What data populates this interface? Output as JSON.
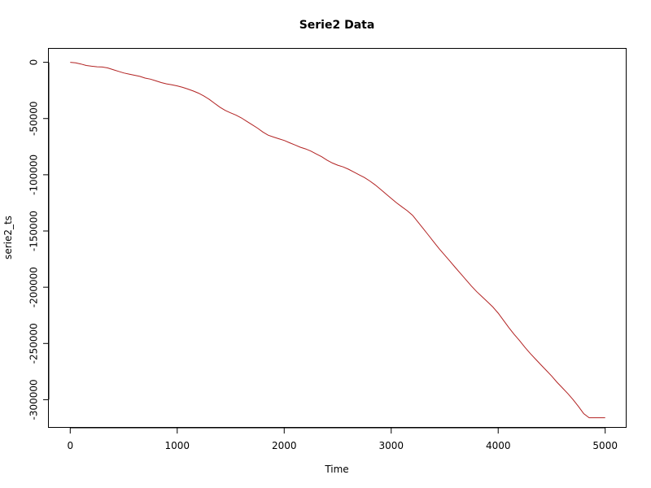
{
  "chart_data": {
    "type": "line",
    "title": "Serie2 Data",
    "xlabel": "Time",
    "ylabel": "serie2_ts",
    "xlim": [
      -200,
      5200
    ],
    "ylim": [
      -325000,
      12000
    ],
    "x_ticks": [
      0,
      1000,
      2000,
      3000,
      4000,
      5000
    ],
    "x_tick_labels": [
      "0",
      "1000",
      "2000",
      "3000",
      "4000",
      "5000"
    ],
    "y_ticks": [
      0,
      -50000,
      -100000,
      -150000,
      -200000,
      -250000,
      -300000
    ],
    "y_tick_labels": [
      "0",
      "-50000",
      "-100000",
      "-150000",
      "-200000",
      "-250000",
      "-300000"
    ],
    "grid": false,
    "line_color": "#b22222",
    "series": [
      {
        "x": [
          0,
          50,
          100,
          150,
          200,
          250,
          300,
          350,
          400,
          450,
          500,
          550,
          600,
          650,
          700,
          750,
          800,
          850,
          900,
          950,
          1000,
          1050,
          1100,
          1150,
          1200,
          1250,
          1300,
          1350,
          1400,
          1450,
          1500,
          1550,
          1600,
          1650,
          1700,
          1750,
          1800,
          1850,
          1900,
          1950,
          2000,
          2050,
          2100,
          2150,
          2200,
          2250,
          2300,
          2350,
          2400,
          2450,
          2500,
          2550,
          2600,
          2650,
          2700,
          2750,
          2800,
          2850,
          2900,
          2950,
          3000,
          3050,
          3100,
          3150,
          3200,
          3250,
          3300,
          3350,
          3400,
          3450,
          3500,
          3550,
          3600,
          3650,
          3700,
          3750,
          3800,
          3850,
          3900,
          3950,
          4000,
          4050,
          4100,
          4150,
          4200,
          4250,
          4300,
          4350,
          4400,
          4450,
          4500,
          4550,
          4600,
          4650,
          4700,
          4750,
          4800,
          4850,
          4900,
          4950,
          5000
        ],
        "values": [
          0,
          -500,
          -1500,
          -2800,
          -3500,
          -4000,
          -4200,
          -5000,
          -6500,
          -8000,
          -9500,
          -10500,
          -11500,
          -12500,
          -14000,
          -15000,
          -16500,
          -18000,
          -19200,
          -20000,
          -21000,
          -22300,
          -23800,
          -25500,
          -27500,
          -30000,
          -33000,
          -36500,
          -40000,
          -42800,
          -45000,
          -47000,
          -49500,
          -52500,
          -55500,
          -58500,
          -62000,
          -64800,
          -66500,
          -68000,
          -69500,
          -71500,
          -73500,
          -75500,
          -77000,
          -79000,
          -81500,
          -84000,
          -87000,
          -89500,
          -91500,
          -93000,
          -95000,
          -97500,
          -100000,
          -102500,
          -105500,
          -109000,
          -113000,
          -117000,
          -121000,
          -125000,
          -128500,
          -132000,
          -136000,
          -142000,
          -148000,
          -154000,
          -160000,
          -166000,
          -171500,
          -177000,
          -182500,
          -188000,
          -193500,
          -199000,
          -204000,
          -208500,
          -213000,
          -217500,
          -223000,
          -229500,
          -236000,
          -242000,
          -247500,
          -253500,
          -259000,
          -264000,
          -269000,
          -274000,
          -279000,
          -284500,
          -289500,
          -294500,
          -300000,
          -306000,
          -312500,
          -316000,
          -316000,
          -316000,
          -316000
        ]
      }
    ]
  }
}
